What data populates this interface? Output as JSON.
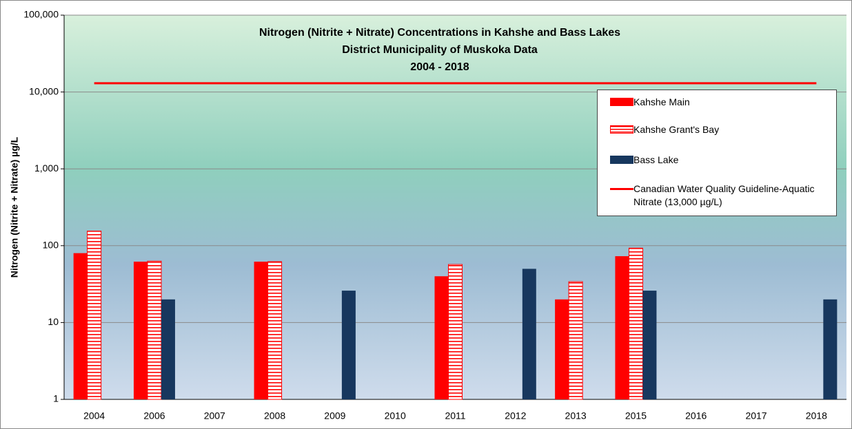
{
  "chart_data": {
    "type": "bar",
    "title": [
      "Nitrogen (Nitrite + Nitrate) Concentrations in Kahshe  and Bass Lakes",
      "District Municipality of Muskoka Data",
      "2004 - 2018"
    ],
    "y_label": "Nitrogen (Nitrite + Nitrate) µg/L",
    "categories": [
      "2004",
      "2006",
      "2007",
      "2008",
      "2009",
      "2010",
      "2011",
      "2012",
      "2013",
      "2015",
      "2016",
      "2017",
      "2018"
    ],
    "series": [
      {
        "name": "Kahshe Main",
        "type": "bar",
        "color": "#ff0000",
        "values": [
          80,
          62,
          null,
          62,
          null,
          null,
          40,
          null,
          20,
          73,
          null,
          null,
          null
        ]
      },
      {
        "name": "Kahshe Grant's Bay",
        "type": "bar",
        "color": "#ff0000",
        "pattern": "horizontal-stripes",
        "values": [
          155,
          63,
          null,
          62,
          null,
          null,
          57,
          null,
          34,
          93,
          null,
          null,
          null
        ]
      },
      {
        "name": "Bass Lake",
        "type": "bar",
        "color": "#17375e",
        "values": [
          null,
          20,
          null,
          null,
          26,
          null,
          null,
          50,
          null,
          26,
          null,
          null,
          20
        ]
      },
      {
        "name": "Canadian Water Quality Guideline-Aquatic Nitrate  (13,000 µg/L)",
        "type": "line",
        "color": "#ff0000",
        "values": [
          13000,
          13000,
          13000,
          13000,
          13000,
          13000,
          13000,
          13000,
          13000,
          13000,
          13000,
          13000,
          13000
        ]
      }
    ],
    "log_scale": true,
    "ylim": [
      1,
      100000
    ],
    "yticks": [
      1,
      10,
      100,
      {
        "value": 1000,
        "label": "1,000"
      },
      {
        "value": 10000,
        "label": "10,000"
      },
      {
        "value": 100000,
        "label": "100,000"
      }
    ],
    "grid": true,
    "legend": "upper-right"
  }
}
